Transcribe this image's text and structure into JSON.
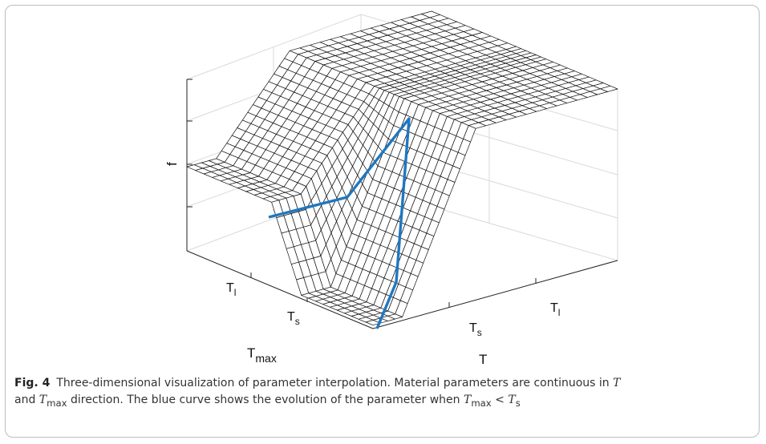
{
  "figure": {
    "z_label": "f",
    "axis_T_max": {
      "title_main": "T",
      "title_sub": "max",
      "ticks": [
        {
          "main": "T",
          "sub": "l"
        },
        {
          "main": "T",
          "sub": "s"
        }
      ]
    },
    "axis_T": {
      "title": "T",
      "ticks": [
        {
          "main": "T",
          "sub": "s"
        },
        {
          "main": "T",
          "sub": "l"
        }
      ]
    },
    "colors": {
      "curve": "#1f77c0",
      "mesh": "#111111",
      "surface": "#ffffff",
      "grid": "#d9d9d9"
    }
  },
  "caption": {
    "label": "Fig. 4",
    "p1": "Three-dimensional visualization of parameter interpolation. Material parameters are continuous in ",
    "v1": "T",
    "p2": "and ",
    "v2": "T",
    "v2sub": "max",
    "p3": " direction. The blue curve shows the evolution of the parameter when ",
    "v3": "T",
    "v3sub": "max",
    "op": " < ",
    "v4": "T",
    "v4sub": "s"
  }
}
